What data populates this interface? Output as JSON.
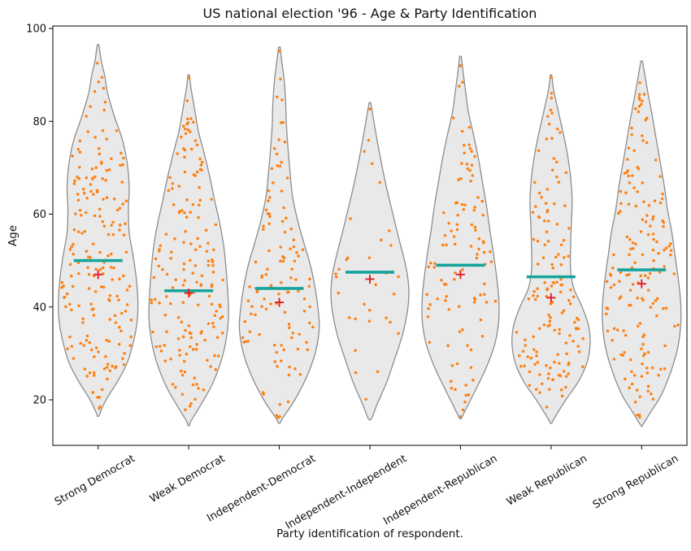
{
  "title": "US national election '96 - Age & Party Identification",
  "x_axis": {
    "label": "Party identification of respondent."
  },
  "y_axis": {
    "label": "Age",
    "ticks": [
      20,
      40,
      60,
      80,
      100
    ],
    "range": [
      10.2,
      100.5
    ]
  },
  "colors": {
    "violin_fill": "#e9e9e9",
    "violin_stroke": "#8c8c8c",
    "point": "#fe7f10",
    "median_line": "#16a39c",
    "mean_marker": "#e41b23",
    "axis": "#000000",
    "text": "#111111"
  },
  "chart_data": {
    "type": "violin",
    "overlays": [
      "jittered-strip-points",
      "median-line",
      "mean-plus-marker"
    ],
    "xlabel": "Party identification of respondent.",
    "ylabel": "Age",
    "ylim": [
      10.2,
      100.5
    ],
    "categories": [
      "Strong Democrat",
      "Weak Democrat",
      "Independent-Democrat",
      "Independent-Independent",
      "Independent-Republican",
      "Weak Republican",
      "Strong Republican"
    ],
    "series": [
      {
        "label": "Strong Democrat",
        "n": 190,
        "median": 50.0,
        "mean": 47.0,
        "min": 16.5,
        "max": 96.5,
        "seed": 11,
        "profile": [
          [
            96.5,
            0.02
          ],
          [
            93,
            0.08
          ],
          [
            90,
            0.16
          ],
          [
            86,
            0.24
          ],
          [
            81,
            0.41
          ],
          [
            76,
            0.61
          ],
          [
            71,
            0.73
          ],
          [
            66,
            0.78
          ],
          [
            61,
            0.76
          ],
          [
            56,
            0.78
          ],
          [
            51,
            0.88
          ],
          [
            46,
            0.96
          ],
          [
            41,
            1.0
          ],
          [
            37,
            0.98
          ],
          [
            33,
            0.9
          ],
          [
            28,
            0.73
          ],
          [
            24,
            0.49
          ],
          [
            20,
            0.2
          ],
          [
            17,
            0.04
          ],
          [
            16.5,
            0.02
          ]
        ]
      },
      {
        "label": "Weak Democrat",
        "n": 165,
        "median": 43.5,
        "mean": 43.0,
        "min": 14.5,
        "max": 90.0,
        "seed": 7930,
        "profile": [
          [
            90,
            0.02
          ],
          [
            87,
            0.06
          ],
          [
            83,
            0.14
          ],
          [
            78,
            0.24
          ],
          [
            73,
            0.39
          ],
          [
            68,
            0.53
          ],
          [
            63,
            0.65
          ],
          [
            58,
            0.78
          ],
          [
            53,
            0.88
          ],
          [
            48,
            0.94
          ],
          [
            43,
            0.98
          ],
          [
            38,
            1.0
          ],
          [
            33,
            0.94
          ],
          [
            28,
            0.8
          ],
          [
            23,
            0.57
          ],
          [
            19,
            0.31
          ],
          [
            15.5,
            0.06
          ],
          [
            14.5,
            0.02
          ]
        ]
      },
      {
        "label": "Independent-Democrat",
        "n": 115,
        "median": 44.0,
        "mean": 41.0,
        "min": 15.0,
        "max": 96.0,
        "seed": 15849,
        "profile": [
          [
            96,
            0.02
          ],
          [
            93,
            0.06
          ],
          [
            89,
            0.12
          ],
          [
            84,
            0.16
          ],
          [
            79,
            0.18
          ],
          [
            74,
            0.22
          ],
          [
            69,
            0.27
          ],
          [
            64,
            0.33
          ],
          [
            59,
            0.45
          ],
          [
            54,
            0.61
          ],
          [
            49,
            0.78
          ],
          [
            44,
            0.9
          ],
          [
            39,
            0.98
          ],
          [
            35,
            1.0
          ],
          [
            30,
            0.9
          ],
          [
            25,
            0.69
          ],
          [
            20,
            0.39
          ],
          [
            16,
            0.08
          ],
          [
            15,
            0.02
          ]
        ]
      },
      {
        "label": "Independent-Independent",
        "n": 32,
        "median": 47.5,
        "mean": 46.0,
        "min": 16.0,
        "max": 84.0,
        "seed": 23768,
        "profile": [
          [
            84,
            0.02
          ],
          [
            80,
            0.1
          ],
          [
            76,
            0.18
          ],
          [
            71,
            0.29
          ],
          [
            66,
            0.41
          ],
          [
            61,
            0.55
          ],
          [
            56,
            0.69
          ],
          [
            51,
            0.84
          ],
          [
            47,
            0.94
          ],
          [
            43,
            0.98
          ],
          [
            39,
            0.94
          ],
          [
            34,
            0.82
          ],
          [
            29,
            0.63
          ],
          [
            24,
            0.43
          ],
          [
            19,
            0.18
          ],
          [
            16,
            0.04
          ]
        ]
      },
      {
        "label": "Independent-Republican",
        "n": 105,
        "median": 49.0,
        "mean": 47.0,
        "min": 16.0,
        "max": 94.0,
        "seed": 31687,
        "profile": [
          [
            94,
            0.02
          ],
          [
            91,
            0.06
          ],
          [
            87,
            0.12
          ],
          [
            82,
            0.2
          ],
          [
            77,
            0.33
          ],
          [
            72,
            0.45
          ],
          [
            67,
            0.55
          ],
          [
            62,
            0.65
          ],
          [
            57,
            0.73
          ],
          [
            52,
            0.82
          ],
          [
            47,
            0.9
          ],
          [
            42,
            0.96
          ],
          [
            37,
            0.96
          ],
          [
            32,
            0.86
          ],
          [
            27,
            0.65
          ],
          [
            22,
            0.37
          ],
          [
            17,
            0.08
          ],
          [
            16,
            0.02
          ]
        ]
      },
      {
        "label": "Weak Republican",
        "n": 145,
        "median": 46.5,
        "mean": 42.0,
        "min": 15.0,
        "max": 90.0,
        "seed": 39606,
        "profile": [
          [
            90,
            0.02
          ],
          [
            87,
            0.06
          ],
          [
            83,
            0.16
          ],
          [
            78,
            0.29
          ],
          [
            73,
            0.41
          ],
          [
            68,
            0.49
          ],
          [
            63,
            0.53
          ],
          [
            58,
            0.51
          ],
          [
            53,
            0.49
          ],
          [
            48,
            0.49
          ],
          [
            44,
            0.57
          ],
          [
            40,
            0.78
          ],
          [
            36,
            0.94
          ],
          [
            32,
            0.98
          ],
          [
            28,
            0.9
          ],
          [
            24,
            0.69
          ],
          [
            20,
            0.37
          ],
          [
            16,
            0.08
          ],
          [
            15,
            0.02
          ]
        ]
      },
      {
        "label": "Strong Republican",
        "n": 165,
        "median": 48.0,
        "mean": 45.0,
        "min": 14.5,
        "max": 93.0,
        "seed": 47525,
        "profile": [
          [
            93,
            0.02
          ],
          [
            90,
            0.08
          ],
          [
            86,
            0.16
          ],
          [
            81,
            0.27
          ],
          [
            76,
            0.37
          ],
          [
            71,
            0.47
          ],
          [
            66,
            0.57
          ],
          [
            61,
            0.65
          ],
          [
            56,
            0.76
          ],
          [
            51,
            0.84
          ],
          [
            46,
            0.92
          ],
          [
            41,
            0.98
          ],
          [
            36,
            0.98
          ],
          [
            31,
            0.9
          ],
          [
            26,
            0.73
          ],
          [
            21,
            0.49
          ],
          [
            17,
            0.2
          ],
          [
            14.5,
            0.02
          ]
        ]
      }
    ]
  }
}
